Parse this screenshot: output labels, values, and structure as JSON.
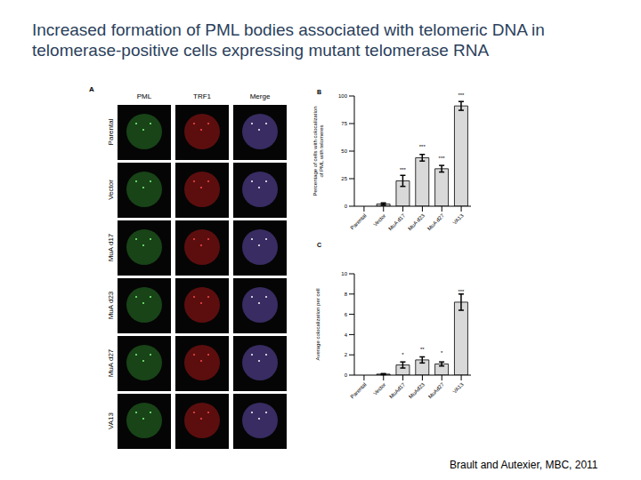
{
  "title": "Increased formation of PML bodies associated with telomeric DNA in telomerase-positive cells expressing mutant telomerase RNA",
  "citation": "Brault and Autexier, MBC, 2011",
  "panel_labels": [
    "A",
    "B",
    "C"
  ],
  "panel_a": {
    "columns": [
      "PML",
      "TRF1",
      "Merge"
    ],
    "rows": [
      "Parental",
      "Vector",
      "MuA d17",
      "MuA d23",
      "MuA d27",
      "VA13"
    ]
  },
  "chart_data": [
    {
      "type": "bar",
      "y_label": "Percentage of cells with colocalization of PML with telomeres",
      "categories": [
        "Parental",
        "Vector",
        "MuA d17",
        "MuA d23",
        "MuA d27",
        "VA13"
      ],
      "values": [
        0,
        2,
        23,
        44,
        34,
        91
      ],
      "errors": [
        0,
        1,
        5,
        3,
        3,
        4
      ],
      "significance": [
        null,
        null,
        "***",
        "***",
        "***",
        "***"
      ],
      "color": "#d9d9d9",
      "ylim": [
        0,
        100
      ],
      "yticks": [
        0,
        25,
        50,
        75,
        100
      ],
      "grid": false
    },
    {
      "type": "bar",
      "y_label": "Average colocalization per cell",
      "categories": [
        "Parental",
        "Vector",
        "MuAd17",
        "MuAd23",
        "MuAd27",
        "VA13"
      ],
      "values": [
        0,
        0.1,
        1.0,
        1.5,
        1.1,
        7.2
      ],
      "errors": [
        0,
        0.05,
        0.3,
        0.3,
        0.2,
        0.8
      ],
      "significance": [
        null,
        null,
        "*",
        "**",
        "*",
        "***"
      ],
      "color": "#d9d9d9",
      "ylim": [
        0,
        10
      ],
      "yticks": [
        0,
        2,
        4,
        6,
        8,
        10
      ],
      "grid": false
    }
  ]
}
